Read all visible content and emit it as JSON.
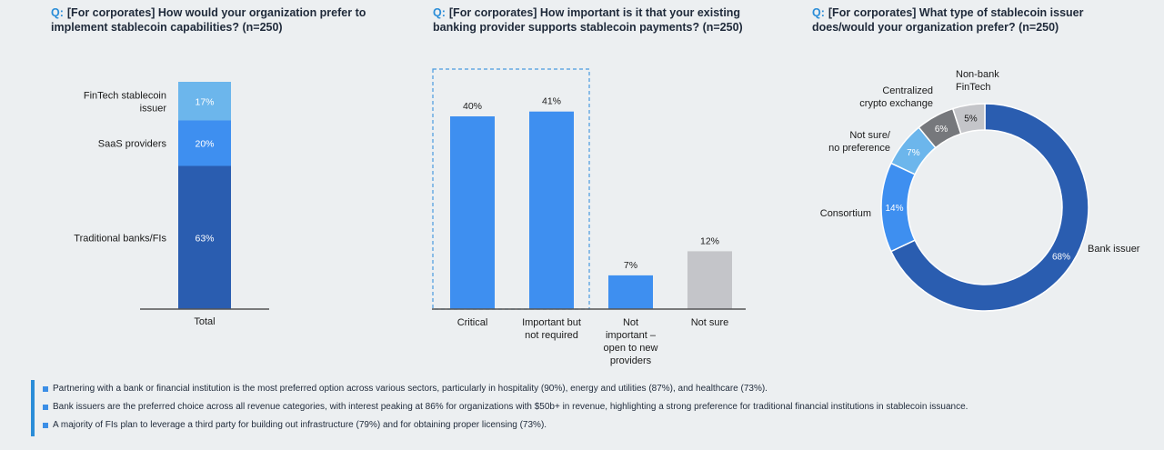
{
  "colors": {
    "dark_blue": "#2a5db0",
    "mid_blue": "#3e8ff0",
    "light_blue": "#6cb6ec",
    "grey": "#c4c5c9",
    "dark_grey": "#76787c",
    "axis": "#555555",
    "accent": "#2a8dd8"
  },
  "questions": [
    {
      "prefix": "Q:",
      "text": "[For corporates] How would your organization prefer to implement stablecoin capabilities? (n=250)"
    },
    {
      "prefix": "Q:",
      "text": "[For corporates] How important is it that your existing banking provider supports stablecoin payments? (n=250)"
    },
    {
      "prefix": "Q:",
      "text": "[For corporates] What type of stablecoin issuer does/would your organization prefer? (n=250)"
    }
  ],
  "chart_data": [
    {
      "type": "bar",
      "stacked": true,
      "categories": [
        "Total"
      ],
      "series": [
        {
          "name": "Traditional banks/FIs",
          "values": [
            63
          ],
          "label": "63%",
          "color": "#2a5db0"
        },
        {
          "name": "SaaS providers",
          "values": [
            20
          ],
          "label": "20%",
          "color": "#3e8ff0"
        },
        {
          "name": "FinTech stablecoin issuer",
          "values": [
            17
          ],
          "label": "17%",
          "color": "#6cb6ec"
        }
      ],
      "ylim": [
        0,
        100
      ]
    },
    {
      "type": "bar",
      "categories": [
        "Critical",
        "Important but not required",
        "Not important – open to new providers",
        "Not sure"
      ],
      "values": [
        40,
        41,
        7,
        12
      ],
      "labels": [
        "40%",
        "41%",
        "7%",
        "12%"
      ],
      "bar_colors": [
        "#3e8ff0",
        "#3e8ff0",
        "#3e8ff0",
        "#c4c5c9"
      ],
      "highlight": [
        "Critical",
        "Important but not required"
      ],
      "ylim": [
        0,
        50
      ]
    },
    {
      "type": "pie",
      "donut": true,
      "slices": [
        {
          "name": "Bank issuer",
          "value": 68,
          "label": "68%",
          "color": "#2a5db0"
        },
        {
          "name": "Consortium",
          "value": 14,
          "label": "14%",
          "color": "#3e8ff0"
        },
        {
          "name": "Not sure/ no preference",
          "value": 7,
          "label": "7%",
          "color": "#6cb6ec"
        },
        {
          "name": "Centralized crypto exchange",
          "value": 6,
          "label": "6%",
          "color": "#76787c"
        },
        {
          "name": "Non-bank FinTech",
          "value": 5,
          "label": "5%",
          "color": "#c4c5c9"
        }
      ]
    }
  ],
  "notes": [
    "Partnering with a bank or financial institution is the most preferred option across various sectors, particularly in hospitality (90%), energy and utilities (87%), and healthcare (73%).",
    "Bank issuers are the preferred choice across all revenue categories, with interest peaking at 86% for organizations with $50b+ in revenue, highlighting a strong preference for traditional financial institutions in stablecoin issuance.",
    "A majority of FIs plan to leverage a third party for building out infrastructure (79%) and for obtaining proper licensing (73%)."
  ]
}
